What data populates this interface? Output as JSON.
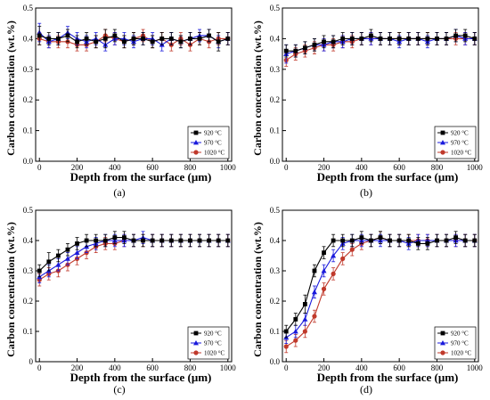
{
  "figure": {
    "colors": {
      "s920": "#000000",
      "s970": "#1a1adc",
      "s1020": "#c0392b",
      "axis": "#000000"
    }
  },
  "chart_data": [
    {
      "type": "line",
      "panel_label": "(a)",
      "xlabel": "Depth from the surface (μm)",
      "ylabel": "Carbon concentration (wt.%)",
      "xlim": [
        -20,
        1020
      ],
      "ylim": [
        0,
        0.5
      ],
      "xticks": [
        0,
        200,
        400,
        600,
        800,
        1000
      ],
      "yticks": [
        0.0,
        0.1,
        0.2,
        0.3,
        0.4,
        0.5
      ],
      "ytick_labels": [
        "0.0",
        "0.1",
        "0.2",
        "0.3",
        "0.4",
        "0.5"
      ],
      "legend_position": "bottom-right",
      "x": [
        0,
        50,
        100,
        150,
        200,
        250,
        300,
        350,
        400,
        450,
        500,
        550,
        600,
        650,
        700,
        750,
        800,
        850,
        900,
        950,
        1000
      ],
      "series": [
        {
          "name": "920 °C",
          "marker": "square",
          "color_key": "s920",
          "values": [
            0.41,
            0.4,
            0.4,
            0.41,
            0.39,
            0.4,
            0.39,
            0.4,
            0.41,
            0.39,
            0.4,
            0.4,
            0.39,
            0.4,
            0.4,
            0.39,
            0.4,
            0.4,
            0.41,
            0.39,
            0.4
          ],
          "errors": [
            0.03,
            0.02,
            0.02,
            0.02,
            0.02,
            0.02,
            0.02,
            0.03,
            0.02,
            0.02,
            0.02,
            0.02,
            0.02,
            0.02,
            0.02,
            0.02,
            0.02,
            0.02,
            0.02,
            0.03,
            0.02
          ]
        },
        {
          "name": "970 °C",
          "marker": "triangle",
          "color_key": "s970",
          "values": [
            0.42,
            0.39,
            0.4,
            0.42,
            0.4,
            0.39,
            0.4,
            0.38,
            0.4,
            0.4,
            0.39,
            0.4,
            0.4,
            0.38,
            0.4,
            0.39,
            0.4,
            0.41,
            0.41,
            0.39,
            0.4
          ],
          "errors": [
            0.03,
            0.02,
            0.02,
            0.02,
            0.02,
            0.02,
            0.02,
            0.02,
            0.02,
            0.02,
            0.02,
            0.02,
            0.02,
            0.02,
            0.02,
            0.02,
            0.02,
            0.02,
            0.02,
            0.02,
            0.02
          ]
        },
        {
          "name": "1020 °C",
          "marker": "circle",
          "color_key": "s1020",
          "values": [
            0.4,
            0.39,
            0.39,
            0.39,
            0.38,
            0.38,
            0.39,
            0.41,
            0.4,
            0.39,
            0.4,
            0.41,
            0.39,
            0.4,
            0.38,
            0.4,
            0.38,
            0.4,
            0.39,
            0.4,
            0.4
          ],
          "errors": [
            0.02,
            0.02,
            0.02,
            0.02,
            0.02,
            0.02,
            0.02,
            0.02,
            0.02,
            0.02,
            0.02,
            0.02,
            0.02,
            0.02,
            0.02,
            0.02,
            0.02,
            0.02,
            0.02,
            0.02,
            0.02
          ]
        }
      ]
    },
    {
      "type": "line",
      "panel_label": "(b)",
      "xlabel": "Depth from the surface (μm)",
      "ylabel": "Carbon concentration (wt.%)",
      "xlim": [
        -20,
        1020
      ],
      "ylim": [
        0,
        0.5
      ],
      "xticks": [
        0,
        200,
        400,
        600,
        800,
        1000
      ],
      "yticks": [
        0.0,
        0.1,
        0.2,
        0.3,
        0.4,
        0.5
      ],
      "ytick_labels": [
        "0.0",
        "0.1",
        "0.2",
        "0.3",
        "0.4",
        "0.5"
      ],
      "legend_position": "bottom-right",
      "x": [
        0,
        50,
        100,
        150,
        200,
        250,
        300,
        350,
        400,
        450,
        500,
        550,
        600,
        650,
        700,
        750,
        800,
        850,
        900,
        950,
        1000
      ],
      "series": [
        {
          "name": "920 °C",
          "marker": "square",
          "color_key": "s920",
          "values": [
            0.36,
            0.36,
            0.37,
            0.38,
            0.39,
            0.39,
            0.4,
            0.4,
            0.4,
            0.41,
            0.4,
            0.4,
            0.4,
            0.4,
            0.4,
            0.4,
            0.4,
            0.4,
            0.41,
            0.41,
            0.4
          ],
          "errors": [
            0.02,
            0.02,
            0.02,
            0.02,
            0.02,
            0.02,
            0.02,
            0.02,
            0.02,
            0.02,
            0.02,
            0.02,
            0.02,
            0.02,
            0.02,
            0.02,
            0.02,
            0.02,
            0.02,
            0.02,
            0.02
          ]
        },
        {
          "name": "970 °C",
          "marker": "triangle",
          "color_key": "s970",
          "values": [
            0.35,
            0.36,
            0.37,
            0.38,
            0.38,
            0.39,
            0.39,
            0.4,
            0.4,
            0.4,
            0.4,
            0.4,
            0.39,
            0.4,
            0.4,
            0.39,
            0.4,
            0.4,
            0.41,
            0.4,
            0.4
          ],
          "errors": [
            0.03,
            0.02,
            0.02,
            0.02,
            0.02,
            0.02,
            0.02,
            0.02,
            0.02,
            0.02,
            0.02,
            0.02,
            0.02,
            0.02,
            0.02,
            0.02,
            0.02,
            0.02,
            0.02,
            0.02,
            0.02
          ]
        },
        {
          "name": "1020 °C",
          "marker": "circle",
          "color_key": "s1020",
          "values": [
            0.33,
            0.35,
            0.36,
            0.37,
            0.38,
            0.38,
            0.39,
            0.39,
            0.4,
            0.4,
            0.4,
            0.4,
            0.4,
            0.4,
            0.4,
            0.4,
            0.4,
            0.4,
            0.4,
            0.4,
            0.4
          ],
          "errors": [
            0.02,
            0.02,
            0.02,
            0.02,
            0.02,
            0.02,
            0.02,
            0.02,
            0.02,
            0.02,
            0.02,
            0.02,
            0.02,
            0.02,
            0.02,
            0.02,
            0.02,
            0.02,
            0.02,
            0.02,
            0.02
          ]
        }
      ]
    },
    {
      "type": "line",
      "panel_label": "(c)",
      "xlabel": "Depth from the surface (μm)",
      "ylabel": "Carbon concentration (wt.%)",
      "xlim": [
        -20,
        1020
      ],
      "ylim": [
        0,
        0.5
      ],
      "xticks": [
        0,
        200,
        400,
        600,
        800,
        1000
      ],
      "yticks": [
        0.0,
        0.1,
        0.2,
        0.3,
        0.4,
        0.5
      ],
      "ytick_labels": [
        "0",
        "0.1",
        "0.2",
        "0.3",
        "0.4",
        "0.5"
      ],
      "legend_position": "bottom-right",
      "x": [
        0,
        50,
        100,
        150,
        200,
        250,
        300,
        350,
        400,
        450,
        500,
        550,
        600,
        650,
        700,
        750,
        800,
        850,
        900,
        950,
        1000
      ],
      "series": [
        {
          "name": "920 °C",
          "marker": "square",
          "color_key": "s920",
          "values": [
            0.3,
            0.33,
            0.35,
            0.37,
            0.39,
            0.4,
            0.4,
            0.4,
            0.41,
            0.41,
            0.4,
            0.4,
            0.4,
            0.4,
            0.4,
            0.4,
            0.4,
            0.4,
            0.4,
            0.4,
            0.4
          ],
          "errors": [
            0.02,
            0.03,
            0.02,
            0.02,
            0.02,
            0.02,
            0.02,
            0.02,
            0.02,
            0.02,
            0.02,
            0.02,
            0.02,
            0.02,
            0.02,
            0.02,
            0.02,
            0.02,
            0.02,
            0.02,
            0.02
          ]
        },
        {
          "name": "970 °C",
          "marker": "triangle",
          "color_key": "s970",
          "values": [
            0.28,
            0.3,
            0.32,
            0.34,
            0.36,
            0.38,
            0.39,
            0.4,
            0.4,
            0.4,
            0.4,
            0.41,
            0.4,
            0.4,
            0.4,
            0.4,
            0.4,
            0.4,
            0.4,
            0.4,
            0.4
          ],
          "errors": [
            0.02,
            0.02,
            0.02,
            0.02,
            0.02,
            0.02,
            0.02,
            0.02,
            0.02,
            0.02,
            0.02,
            0.02,
            0.02,
            0.02,
            0.02,
            0.02,
            0.02,
            0.02,
            0.02,
            0.02,
            0.02
          ]
        },
        {
          "name": "1020 °C",
          "marker": "circle",
          "color_key": "s1020",
          "values": [
            0.27,
            0.29,
            0.3,
            0.32,
            0.34,
            0.36,
            0.38,
            0.39,
            0.39,
            0.4,
            0.4,
            0.4,
            0.4,
            0.4,
            0.4,
            0.4,
            0.4,
            0.4,
            0.4,
            0.4,
            0.4
          ],
          "errors": [
            0.02,
            0.02,
            0.02,
            0.02,
            0.02,
            0.02,
            0.02,
            0.02,
            0.02,
            0.02,
            0.02,
            0.02,
            0.02,
            0.02,
            0.02,
            0.02,
            0.02,
            0.02,
            0.02,
            0.02,
            0.02
          ]
        }
      ]
    },
    {
      "type": "line",
      "panel_label": "(d)",
      "xlabel": "Depth from the surface (μm)",
      "ylabel": "Carbon concentration (wt.%)",
      "xlim": [
        -20,
        1020
      ],
      "ylim": [
        0,
        0.5
      ],
      "xticks": [
        0,
        200,
        400,
        600,
        800,
        1000
      ],
      "yticks": [
        0.0,
        0.1,
        0.2,
        0.3,
        0.4,
        0.5
      ],
      "ytick_labels": [
        "0.0",
        "0.1",
        "0.2",
        "0.3",
        "0.4",
        "0.5"
      ],
      "legend_position": "bottom-right",
      "x": [
        0,
        50,
        100,
        150,
        200,
        250,
        300,
        350,
        400,
        450,
        500,
        550,
        600,
        650,
        700,
        750,
        800,
        850,
        900,
        950,
        1000
      ],
      "series": [
        {
          "name": "920 °C",
          "marker": "square",
          "color_key": "s920",
          "values": [
            0.1,
            0.14,
            0.19,
            0.3,
            0.36,
            0.4,
            0.4,
            0.4,
            0.41,
            0.4,
            0.41,
            0.4,
            0.4,
            0.4,
            0.39,
            0.39,
            0.4,
            0.4,
            0.41,
            0.4,
            0.4
          ],
          "errors": [
            0.02,
            0.02,
            0.03,
            0.02,
            0.02,
            0.02,
            0.02,
            0.02,
            0.02,
            0.02,
            0.02,
            0.02,
            0.02,
            0.02,
            0.02,
            0.02,
            0.02,
            0.02,
            0.02,
            0.02,
            0.02
          ]
        },
        {
          "name": "970 °C",
          "marker": "triangle",
          "color_key": "s970",
          "values": [
            0.08,
            0.1,
            0.14,
            0.23,
            0.3,
            0.35,
            0.39,
            0.4,
            0.4,
            0.4,
            0.4,
            0.4,
            0.4,
            0.39,
            0.4,
            0.4,
            0.4,
            0.4,
            0.4,
            0.4,
            0.4
          ],
          "errors": [
            0.02,
            0.02,
            0.02,
            0.02,
            0.02,
            0.02,
            0.02,
            0.02,
            0.02,
            0.02,
            0.02,
            0.02,
            0.02,
            0.02,
            0.02,
            0.02,
            0.02,
            0.02,
            0.02,
            0.02,
            0.02
          ]
        },
        {
          "name": "1020 °C",
          "marker": "circle",
          "color_key": "s1020",
          "values": [
            0.05,
            0.07,
            0.1,
            0.15,
            0.24,
            0.29,
            0.34,
            0.37,
            0.39,
            0.4,
            0.41,
            0.4,
            0.4,
            0.4,
            0.4,
            0.4,
            0.4,
            0.4,
            0.4,
            0.4,
            0.4
          ],
          "errors": [
            0.02,
            0.02,
            0.02,
            0.02,
            0.02,
            0.02,
            0.02,
            0.02,
            0.02,
            0.02,
            0.02,
            0.02,
            0.02,
            0.02,
            0.02,
            0.02,
            0.02,
            0.02,
            0.02,
            0.02,
            0.02
          ]
        }
      ]
    }
  ]
}
